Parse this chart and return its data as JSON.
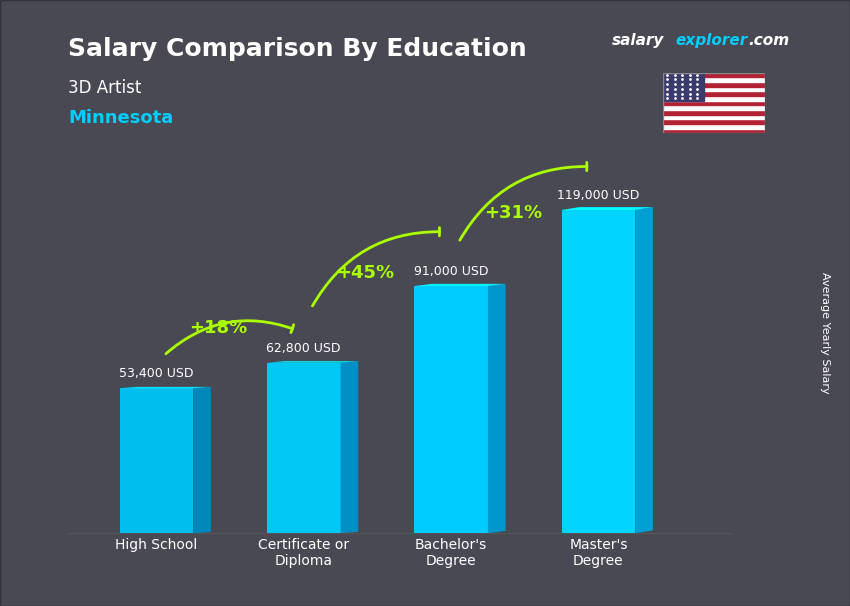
{
  "title": "Salary Comparison By Education",
  "subtitle_job": "3D Artist",
  "subtitle_location": "Minnesota",
  "ylabel": "Average Yearly Salary",
  "categories": [
    "High School",
    "Certificate or\nDiploma",
    "Bachelor's\nDegree",
    "Master's\nDegree"
  ],
  "values": [
    53400,
    62800,
    91000,
    119000
  ],
  "value_labels": [
    "53,400 USD",
    "62,800 USD",
    "91,000 USD",
    "119,000 USD"
  ],
  "pct_labels": [
    "+18%",
    "+45%",
    "+31%"
  ],
  "bar_color_top": "#00cfff",
  "bar_color_mid": "#00aadd",
  "bar_color_side": "#007aaa",
  "bar_color_face": "#00bfff",
  "background_color": "#1a1a2e",
  "title_color": "#ffffff",
  "subtitle_job_color": "#ffffff",
  "subtitle_loc_color": "#00cfff",
  "value_label_color": "#ffffff",
  "pct_label_color": "#aaff00",
  "arrow_color": "#aaff00",
  "xtick_color": "#ffffff",
  "ylabel_color": "#ffffff",
  "brand_salary": "salary",
  "brand_explorer": "explorer",
  "brand_com": ".com",
  "ylim_max": 145000,
  "bar_width": 0.5
}
